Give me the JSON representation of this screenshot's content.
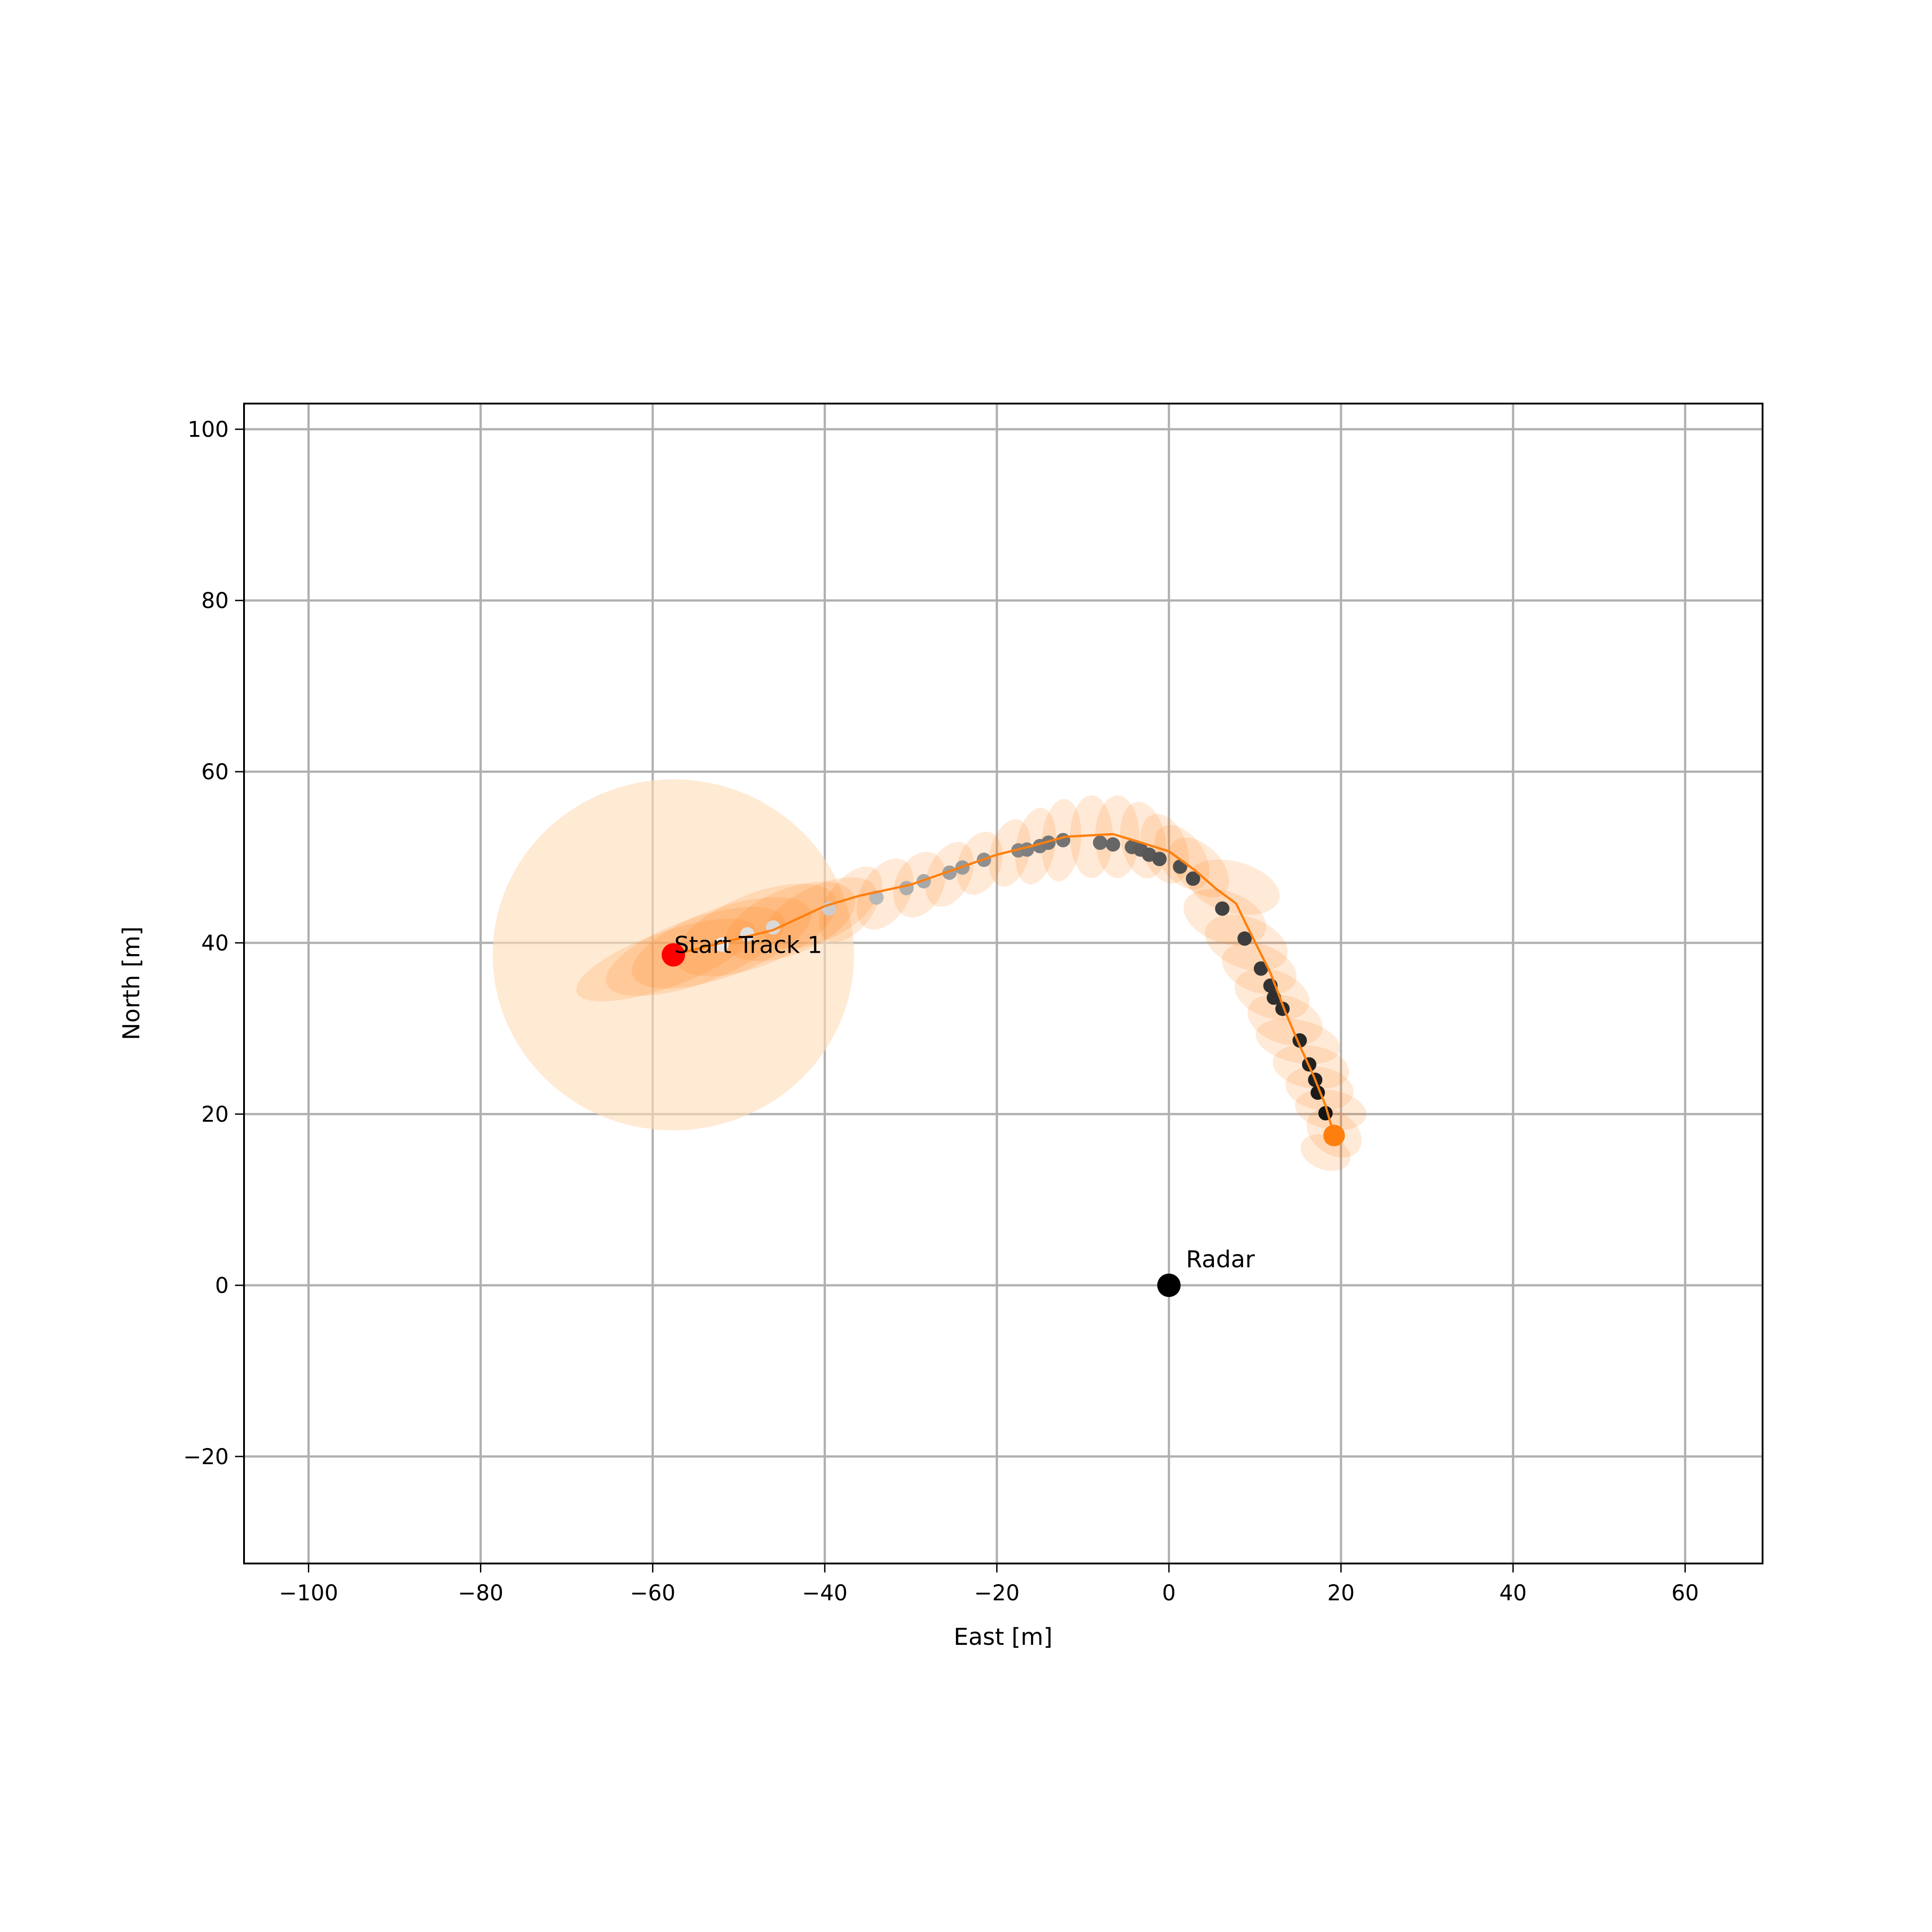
{
  "chart_data": {
    "type": "scatter",
    "xlabel": "East [m]",
    "ylabel": "North [m]",
    "xlim": [
      -107.5,
      69
    ],
    "ylim": [
      -32.5,
      103
    ],
    "xticks": [
      -100,
      -80,
      -60,
      -40,
      -20,
      0,
      20,
      40,
      60
    ],
    "yticks": [
      -20,
      0,
      20,
      40,
      60,
      80,
      100
    ],
    "grid": true,
    "colors": {
      "track_line": "#ff7f0e",
      "covariance_fill": "#ffdcb8",
      "start_marker": "#ff0000",
      "end_marker": "#ff7f0e",
      "radar_marker": "#000000",
      "grid": "#b0b0b0"
    },
    "annotations": [
      {
        "text": "Start Track 1",
        "x": -57.6,
        "y": 38.6
      },
      {
        "text": "Radar",
        "x": 0,
        "y": 0
      }
    ],
    "radar": {
      "x": 0,
      "y": 0
    },
    "initial_covariance": {
      "x": -57.6,
      "y": 38.6,
      "rx": 21,
      "ry": 20.5,
      "angle": 0
    },
    "track": [
      [
        -57.6,
        38.6
      ],
      [
        -52,
        40
      ],
      [
        -46,
        41.5
      ],
      [
        -40,
        44.3
      ],
      [
        -36,
        45.5
      ],
      [
        -30,
        46.8
      ],
      [
        -26,
        48.2
      ],
      [
        -20,
        50.3
      ],
      [
        -16,
        51.3
      ],
      [
        -12,
        52.4
      ],
      [
        -6.5,
        52.7
      ],
      [
        -3.5,
        51.8
      ],
      [
        0,
        50.7
      ],
      [
        3,
        48.5
      ],
      [
        5.5,
        46.3
      ],
      [
        7.8,
        44.6
      ],
      [
        9.8,
        40.5
      ],
      [
        11.8,
        36.5
      ],
      [
        13.5,
        32
      ],
      [
        15.2,
        28
      ],
      [
        16.8,
        24.5
      ],
      [
        18.2,
        21
      ],
      [
        19.2,
        17.5
      ]
    ],
    "covariance_ellipses": [
      [
        -58.5,
        38,
        11,
        3.2,
        -20
      ],
      [
        -55,
        39,
        11,
        3.8,
        -20
      ],
      [
        -52,
        40,
        11,
        4,
        -20
      ],
      [
        -48,
        41.5,
        10,
        4.2,
        -22
      ],
      [
        -44,
        42.5,
        8,
        3.8,
        -22
      ],
      [
        -40.5,
        43.5,
        7,
        3.2,
        -25
      ],
      [
        -37,
        44.5,
        5,
        2.8,
        -55
      ],
      [
        -33,
        45.7,
        4.5,
        2.8,
        -60
      ],
      [
        -29,
        46.8,
        4,
        2.8,
        -65
      ],
      [
        -25.5,
        48,
        4,
        2.5,
        -65
      ],
      [
        -22,
        49.3,
        3.8,
        2.5,
        -70
      ],
      [
        -18.5,
        50.5,
        4,
        2.3,
        -75
      ],
      [
        -15.5,
        51.3,
        4.5,
        2.3,
        -80
      ],
      [
        -12.5,
        52,
        4.8,
        2.3,
        -85
      ],
      [
        -9,
        52.4,
        4.8,
        2.5,
        -90
      ],
      [
        -6,
        52.4,
        4.8,
        2.6,
        90
      ],
      [
        -3,
        52,
        4.5,
        2.6,
        80
      ],
      [
        -0.5,
        51,
        4.2,
        2.6,
        70
      ],
      [
        1.5,
        50,
        4.2,
        2.6,
        55
      ],
      [
        3.5,
        48.8,
        4.2,
        2.6,
        45
      ],
      [
        7.5,
        46.5,
        5.5,
        3,
        15
      ],
      [
        6.5,
        43,
        5,
        3,
        20
      ],
      [
        9,
        40,
        5,
        3,
        20
      ],
      [
        10.5,
        37,
        4.5,
        2.8,
        20
      ],
      [
        12,
        34,
        4.5,
        2.8,
        18
      ],
      [
        13.5,
        31,
        4.5,
        2.8,
        18
      ],
      [
        15,
        28.5,
        5,
        2.5,
        12
      ],
      [
        16.5,
        25.5,
        4.5,
        2.5,
        10
      ],
      [
        17.5,
        23,
        4,
        2.5,
        10
      ],
      [
        18.8,
        20.5,
        4.2,
        2.3,
        10
      ],
      [
        19.2,
        17.8,
        3.5,
        2.5,
        35
      ],
      [
        18.2,
        15.5,
        3,
        2,
        20
      ]
    ],
    "measurements": [
      [
        -57.3,
        38.5,
        0.92
      ],
      [
        -52,
        39.8,
        0.9
      ],
      [
        -49,
        41,
        0.88
      ],
      [
        -46,
        41.8,
        0.85
      ],
      [
        -39.5,
        44,
        0.8
      ],
      [
        -34,
        45.3,
        0.72
      ],
      [
        -30.5,
        46.4,
        0.68
      ],
      [
        -28.5,
        47.2,
        0.66
      ],
      [
        -25.5,
        48.2,
        0.62
      ],
      [
        -24,
        48.8,
        0.6
      ],
      [
        -21.5,
        49.7,
        0.56
      ],
      [
        -17.5,
        50.8,
        0.52
      ],
      [
        -16.5,
        50.9,
        0.5
      ],
      [
        -15,
        51.3,
        0.48
      ],
      [
        -14,
        51.7,
        0.46
      ],
      [
        -12.3,
        52,
        0.45
      ],
      [
        -8,
        51.7,
        0.42
      ],
      [
        -6.5,
        51.5,
        0.4
      ],
      [
        -4.3,
        51.2,
        0.38
      ],
      [
        -3.3,
        50.9,
        0.36
      ],
      [
        -2.3,
        50.3,
        0.34
      ],
      [
        -1.1,
        49.8,
        0.32
      ],
      [
        1.3,
        48.9,
        0.3
      ],
      [
        2.8,
        47.5,
        0.28
      ],
      [
        6.2,
        44,
        0.26
      ],
      [
        8.8,
        40.5,
        0.24
      ],
      [
        10.7,
        37,
        0.22
      ],
      [
        11.8,
        35,
        0.2
      ],
      [
        12.2,
        33.6,
        0.18
      ],
      [
        13.2,
        32.3,
        0.17
      ],
      [
        15.2,
        28.6,
        0.15
      ],
      [
        16.3,
        25.8,
        0.13
      ],
      [
        17,
        24,
        0.12
      ],
      [
        17.3,
        22.5,
        0.1
      ],
      [
        18.2,
        20.1,
        0.08
      ],
      [
        18.9,
        17.2,
        0.05
      ]
    ],
    "start_point": [
      -57.6,
      38.6
    ],
    "end_point": [
      19.2,
      17.5
    ]
  }
}
